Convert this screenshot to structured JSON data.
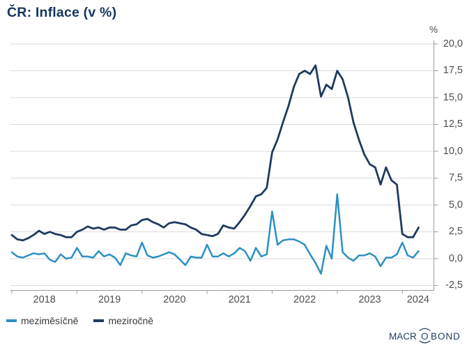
{
  "title": "ČR: Inflace (v %)",
  "y_axis": {
    "unit_label": "%",
    "tick_labels": [
      "20,0",
      "17,5",
      "15,0",
      "12,5",
      "10,0",
      "7,5",
      "5,0",
      "2,5",
      "0,0",
      "-2,5"
    ],
    "tick_values": [
      20,
      17.5,
      15,
      12.5,
      10,
      7.5,
      5,
      2.5,
      0,
      -2.5
    ]
  },
  "x_axis": {
    "year_labels": [
      "2018",
      "2019",
      "2020",
      "2021",
      "2022",
      "2023",
      "2024"
    ]
  },
  "legend": [
    {
      "label": "meziměsíčně",
      "color": "#2b90c2"
    },
    {
      "label": "meziročně",
      "color": "#1f3a5f"
    }
  ],
  "branding": {
    "logo_text": "MACROBOND",
    "logo_parts": [
      "MACR",
      "O",
      "BOND"
    ]
  },
  "colors": {
    "title": "#17365d",
    "axis_text": "#4d4d4d",
    "legend_text": "#383838",
    "grid": "#d9d9d9",
    "axis_line": "#9b9b9b",
    "mom_line": "#2b90c2",
    "yoy_line": "#1f3a5f",
    "logo": "#1d3c5e"
  },
  "chart_data": {
    "type": "line",
    "title": "ČR: Inflace (v %)",
    "ylabel": "%",
    "ylim": [
      -2.5,
      20
    ],
    "grid": true,
    "legend_position": "bottom-left",
    "x_start": "2018-01",
    "x_end": "2024-04",
    "frequency": "monthly",
    "series": [
      {
        "name": "meziměsíčně",
        "color": "#2b90c2",
        "values": [
          0.6,
          0.2,
          0.1,
          0.3,
          0.5,
          0.4,
          0.5,
          -0.1,
          -0.3,
          0.4,
          0.0,
          0.1,
          1.0,
          0.2,
          0.2,
          0.1,
          0.7,
          0.2,
          0.4,
          0.1,
          -0.6,
          0.5,
          0.3,
          0.2,
          1.5,
          0.3,
          0.1,
          0.2,
          0.4,
          0.6,
          0.4,
          -0.1,
          -0.6,
          0.2,
          0.1,
          0.1,
          1.3,
          0.2,
          0.2,
          0.5,
          0.2,
          0.5,
          1.0,
          0.7,
          -0.2,
          1.0,
          0.2,
          0.4,
          4.4,
          1.3,
          1.7,
          1.8,
          1.8,
          1.6,
          1.3,
          0.4,
          -0.4,
          -1.4,
          1.2,
          0.0,
          6.0,
          0.6,
          0.1,
          -0.2,
          0.3,
          0.3,
          0.5,
          0.2,
          -0.7,
          0.1,
          0.1,
          0.4,
          1.5,
          0.3,
          0.1,
          0.7
        ]
      },
      {
        "name": "meziročně",
        "color": "#1f3a5f",
        "values": [
          2.2,
          1.8,
          1.7,
          1.9,
          2.2,
          2.6,
          2.3,
          2.5,
          2.3,
          2.2,
          2.0,
          2.0,
          2.5,
          2.7,
          3.0,
          2.8,
          2.9,
          2.7,
          2.9,
          2.9,
          2.7,
          2.7,
          3.1,
          3.2,
          3.6,
          3.7,
          3.4,
          3.2,
          2.9,
          3.3,
          3.4,
          3.3,
          3.2,
          2.9,
          2.7,
          2.3,
          2.2,
          2.1,
          2.3,
          3.1,
          2.9,
          2.8,
          3.4,
          4.1,
          4.9,
          5.8,
          6.0,
          6.6,
          9.9,
          11.1,
          12.7,
          14.2,
          16.0,
          17.2,
          17.5,
          17.2,
          18.0,
          15.1,
          16.2,
          15.8,
          17.5,
          16.7,
          15.0,
          12.7,
          11.1,
          9.7,
          8.8,
          8.5,
          6.9,
          8.5,
          7.3,
          6.9,
          2.3,
          2.0,
          2.0,
          2.9
        ]
      }
    ]
  }
}
